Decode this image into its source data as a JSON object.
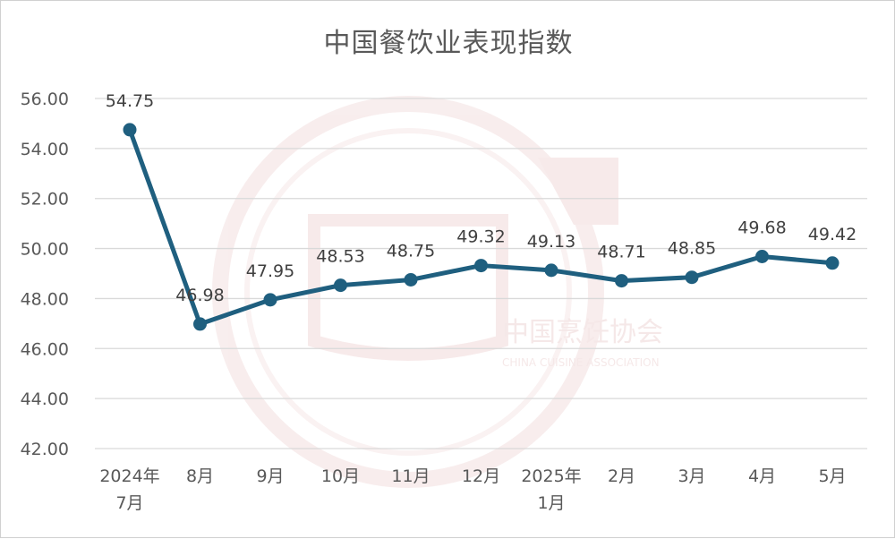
{
  "chart_data": {
    "type": "line",
    "title": "中国餐饮业表现指数",
    "categories": [
      [
        "2024年",
        "7月"
      ],
      [
        "8月"
      ],
      [
        "9月"
      ],
      [
        "10月"
      ],
      [
        "11月"
      ],
      [
        "12月"
      ],
      [
        "2025年",
        "1月"
      ],
      [
        "2月"
      ],
      [
        "3月"
      ],
      [
        "4月"
      ],
      [
        "5月"
      ]
    ],
    "series": [
      {
        "values": [
          54.75,
          46.98,
          47.95,
          48.53,
          48.75,
          49.32,
          49.13,
          48.71,
          48.85,
          49.68,
          49.42
        ],
        "value_labels": [
          "54.75",
          "46.98",
          "47.95",
          "48.53",
          "48.75",
          "49.32",
          "49.13",
          "48.71",
          "48.85",
          "49.68",
          "49.42"
        ],
        "color": "#1f5f7f"
      }
    ],
    "ylim": [
      42,
      56
    ],
    "yticks": [
      "42.00",
      "44.00",
      "46.00",
      "48.00",
      "50.00",
      "52.00",
      "54.00",
      "56.00"
    ],
    "grid": true,
    "data_labels": true,
    "legend": false
  },
  "watermark": {
    "name": "中国烹饪协会",
    "english": "CHINA CUISINE ASSOCIATION",
    "color": "#f2d9d9"
  }
}
